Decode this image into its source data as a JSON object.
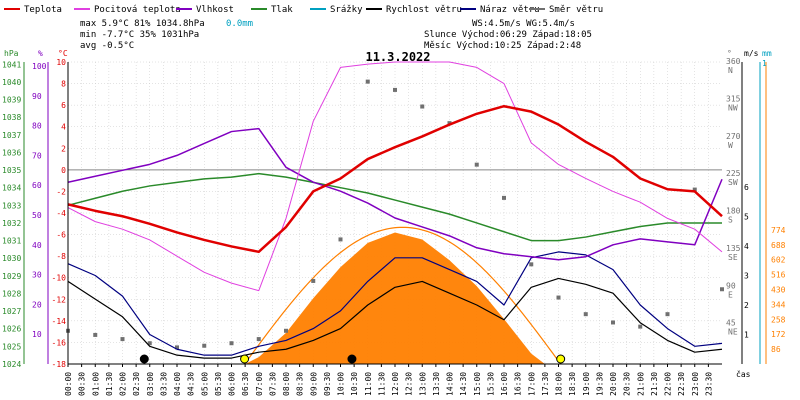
{
  "legend": [
    {
      "label": "Teplota",
      "color": "#e00000"
    },
    {
      "label": "Pocitová teplota",
      "color": "#e040e0"
    },
    {
      "label": "Vlhkost",
      "color": "#8000c0"
    },
    {
      "label": "Tlak",
      "color": "#2a8a2a"
    },
    {
      "label": "Srážky",
      "color": "#00a0c0"
    },
    {
      "label": "Rychlost větru",
      "color": "#000000"
    },
    {
      "label": "Náraz větru",
      "color": "#000080"
    },
    {
      "label": "Směr větru",
      "color": "#707070"
    }
  ],
  "stats": {
    "max_row": "max   5.9°C  81%  1034.8hPa",
    "max_rain": "0.0mm",
    "min_row": "min  -7.7°C  35%  1031hPa",
    "avg_row": "avg  -0.5°C",
    "wind_row": "WS:4.5m/s     WG:5.4m/s",
    "sun_row": "Slunce Východ:06:29  Západ:18:05",
    "moon_row": "Měsíc  Východ:10:25  Západ:2:48"
  },
  "date_title": "11.3.2022",
  "axis_units": {
    "hpa": "hPa",
    "pct": "%",
    "celsius": "°C",
    "deg": "°",
    "ms": "m/s",
    "mm": "mm",
    "xlabel": "čas"
  },
  "colors": {
    "temp": "#e00000",
    "feels": "#e040e0",
    "humidity": "#8000c0",
    "pressure": "#2a8a2a",
    "wind": "#000000",
    "gust": "#000080",
    "dir": "#707070",
    "solar_fill": "#ff8000",
    "solar_curve": "#ff8000",
    "rain": "#00a0c0",
    "grid": "#c8c8c8",
    "sun_marker": "#ffff00"
  },
  "chart_data": {
    "type": "line",
    "title": "11.3.2022",
    "xlabel": "čas",
    "x_ticks": [
      "00:00",
      "00:30",
      "01:00",
      "01:30",
      "02:00",
      "02:30",
      "03:00",
      "03:30",
      "04:00",
      "04:30",
      "05:00",
      "05:30",
      "06:00",
      "06:30",
      "07:00",
      "07:30",
      "08:00",
      "08:30",
      "09:00",
      "09:30",
      "10:00",
      "10:30",
      "11:00",
      "11:30",
      "12:00",
      "12:30",
      "13:00",
      "13:30",
      "14:00",
      "14:30",
      "15:00",
      "15:30",
      "16:00",
      "16:30",
      "17:00",
      "17:30",
      "18:00",
      "18:30",
      "19:00",
      "19:30",
      "20:00",
      "20:30",
      "21:00",
      "21:30",
      "22:00",
      "22:30",
      "23:00",
      "23:30"
    ],
    "xlim": [
      0,
      24
    ],
    "axes": {
      "pressure_hpa": {
        "ticks": [
          1024,
          1025,
          1026,
          1027,
          1028,
          1029,
          1030,
          1031,
          1032,
          1033,
          1034,
          1035,
          1036,
          1037,
          1038,
          1039,
          1040,
          1041
        ]
      },
      "humidity_pct": {
        "ticks": [
          10,
          20,
          30,
          40,
          50,
          60,
          70,
          80,
          90,
          100
        ]
      },
      "temp_c": {
        "ticks": [
          -18,
          -16,
          -14,
          -12,
          -10,
          -8,
          -6,
          -4,
          -2,
          0,
          2,
          4,
          6,
          8,
          10
        ],
        "ylim": [
          -18,
          10
        ]
      },
      "wind_dir_deg": {
        "ticks": [
          {
            "v": 360,
            "l": "N"
          },
          {
            "v": 315,
            "l": "NW"
          },
          {
            "v": 270,
            "l": "W"
          },
          {
            "v": 225,
            "l": "SW"
          },
          {
            "v": 180,
            "l": "S"
          },
          {
            "v": 135,
            "l": "SE"
          },
          {
            "v": 90,
            "l": "E"
          },
          {
            "v": 45,
            "l": "NE"
          }
        ]
      },
      "wind_ms": {
        "ticks": [
          1,
          2,
          3,
          4,
          5,
          6
        ]
      },
      "rain_mm": {
        "ticks": [
          1
        ]
      },
      "solar": {
        "ticks": [
          86,
          172,
          258,
          344,
          430,
          516,
          602,
          688,
          774
        ]
      }
    },
    "series": [
      {
        "name": "Teplota",
        "unit": "°C",
        "x": [
          0,
          1,
          2,
          3,
          4,
          5,
          6,
          7,
          8,
          9,
          10,
          11,
          12,
          13,
          14,
          15,
          16,
          17,
          18,
          19,
          20,
          21,
          22,
          23,
          24
        ],
        "values": [
          -3.2,
          -3.8,
          -4.3,
          -5.0,
          -5.8,
          -6.5,
          -7.1,
          -7.6,
          -5.3,
          -2.0,
          -0.8,
          1.0,
          2.1,
          3.1,
          4.2,
          5.2,
          5.9,
          5.4,
          4.2,
          2.6,
          1.2,
          -0.8,
          -1.8,
          -2.0,
          -4.3
        ]
      },
      {
        "name": "Pocitová teplota",
        "unit": "°C",
        "x": [
          0,
          1,
          2,
          3,
          4,
          5,
          6,
          7,
          8,
          9,
          10,
          11,
          12,
          13,
          14,
          15,
          16,
          17,
          18,
          19,
          20,
          21,
          22,
          23,
          24
        ],
        "values": [
          -3.5,
          -4.8,
          -5.5,
          -6.5,
          -8.0,
          -9.5,
          -10.5,
          -11.2,
          -4.5,
          4.5,
          9.5,
          9.8,
          10,
          10,
          10,
          9.5,
          8.0,
          2.5,
          0.5,
          -0.8,
          -2.0,
          -3.0,
          -4.5,
          -5.5,
          -7.6
        ]
      },
      {
        "name": "Vlhkost",
        "unit": "%",
        "x": [
          0,
          1,
          2,
          3,
          4,
          5,
          6,
          7,
          8,
          9,
          10,
          11,
          12,
          13,
          14,
          15,
          16,
          17,
          18,
          19,
          20,
          21,
          22,
          23,
          24
        ],
        "values": [
          61,
          63,
          65,
          67,
          70,
          74,
          78,
          79,
          66,
          61,
          58,
          54,
          49,
          46,
          43,
          39,
          37,
          36,
          35,
          36,
          40,
          42,
          41,
          40,
          62
        ]
      },
      {
        "name": "Tlak",
        "unit": "hPa",
        "x": [
          0,
          1,
          2,
          3,
          4,
          5,
          6,
          7,
          8,
          9,
          10,
          11,
          12,
          13,
          14,
          15,
          16,
          17,
          18,
          19,
          20,
          21,
          22,
          23,
          24
        ],
        "values": [
          1033.0,
          1033.4,
          1033.8,
          1034.1,
          1034.3,
          1034.5,
          1034.6,
          1034.8,
          1034.6,
          1034.3,
          1034.0,
          1033.7,
          1033.3,
          1032.9,
          1032.5,
          1032.0,
          1031.5,
          1031.0,
          1031.0,
          1031.2,
          1031.5,
          1031.8,
          1032.0,
          1032.0,
          1032.0
        ]
      },
      {
        "name": "Rychlost větru",
        "unit": "m/s",
        "x": [
          0,
          1,
          2,
          3,
          4,
          5,
          6,
          7,
          8,
          9,
          10,
          11,
          12,
          13,
          14,
          15,
          16,
          17,
          18,
          19,
          20,
          21,
          22,
          23,
          24
        ],
        "values": [
          2.8,
          2.2,
          1.6,
          0.6,
          0.3,
          0.2,
          0.2,
          0.4,
          0.5,
          0.8,
          1.2,
          2.0,
          2.6,
          2.8,
          2.4,
          2.0,
          1.5,
          2.6,
          2.9,
          2.7,
          2.4,
          1.4,
          0.8,
          0.4,
          0.5
        ]
      },
      {
        "name": "Náraz větru",
        "unit": "m/s",
        "x": [
          0,
          1,
          2,
          3,
          4,
          5,
          6,
          7,
          8,
          9,
          10,
          11,
          12,
          13,
          14,
          15,
          16,
          17,
          18,
          19,
          20,
          21,
          22,
          23,
          24
        ],
        "values": [
          3.4,
          3.0,
          2.3,
          1.0,
          0.5,
          0.3,
          0.3,
          0.6,
          0.8,
          1.2,
          1.8,
          2.8,
          3.6,
          3.6,
          3.2,
          2.8,
          2.0,
          3.6,
          3.8,
          3.7,
          3.2,
          2.0,
          1.2,
          0.6,
          0.7
        ]
      },
      {
        "name": "Solar",
        "unit": "",
        "x": [
          6.5,
          7,
          8,
          9,
          10,
          11,
          12,
          13,
          14,
          15,
          16,
          17,
          17.5
        ],
        "values": [
          0,
          40,
          180,
          380,
          560,
          700,
          760,
          720,
          600,
          450,
          260,
          60,
          0
        ]
      },
      {
        "name": "Směr větru",
        "unit": "°",
        "x": [
          0,
          1,
          2,
          3,
          4,
          5,
          6,
          7,
          8,
          9,
          10,
          11,
          12,
          13,
          14,
          15,
          16,
          17,
          18,
          19,
          20,
          21,
          22,
          23,
          24
        ],
        "values": [
          40,
          35,
          30,
          25,
          20,
          22,
          25,
          30,
          40,
          100,
          150,
          340,
          330,
          310,
          290,
          240,
          200,
          120,
          80,
          60,
          50,
          45,
          60,
          210,
          90
        ]
      }
    ],
    "markers": [
      {
        "name": "moonset",
        "x": 2.8
      },
      {
        "name": "sunrise",
        "x": 6.48
      },
      {
        "name": "moonrise",
        "x": 10.42
      },
      {
        "name": "sunset",
        "x": 18.08
      }
    ]
  }
}
